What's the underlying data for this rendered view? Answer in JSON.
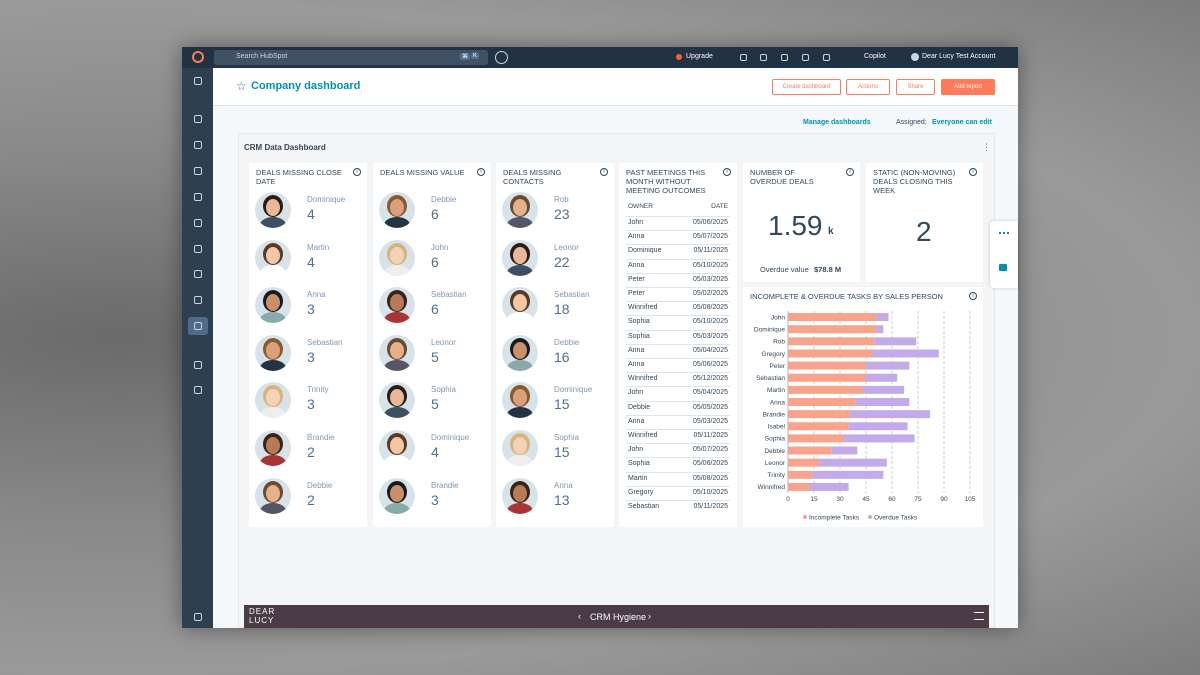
{
  "topbar": {
    "search": "Search HubSpot",
    "shortcut": [
      "⌘",
      "K"
    ],
    "upgrade": "Upgrade",
    "copilot": "Copilot",
    "account": "Dear Lucy Test Account"
  },
  "header": {
    "title": "Company dashboard",
    "buttons": [
      "Create dashboard",
      "Actions",
      "Share",
      "Add report"
    ],
    "manage": "Manage dashboards",
    "assigned_label": "Assigned:",
    "assigned_value": "Everyone can edit"
  },
  "dashboard": {
    "title": "CRM Data Dashboard",
    "people_cards": [
      {
        "title": "DEALS MISSING CLOSE DATE",
        "people": [
          {
            "name": "Dominique",
            "count": 4
          },
          {
            "name": "Martin",
            "count": 4
          },
          {
            "name": "Anna",
            "count": 3
          },
          {
            "name": "Sebastian",
            "count": 3
          },
          {
            "name": "Trinity",
            "count": 3
          },
          {
            "name": "Brandie",
            "count": 2
          },
          {
            "name": "Debbie",
            "count": 2
          }
        ]
      },
      {
        "title": "DEALS MISSING VALUE",
        "people": [
          {
            "name": "Debbie",
            "count": 6
          },
          {
            "name": "John",
            "count": 6
          },
          {
            "name": "Sebastian",
            "count": 6
          },
          {
            "name": "Leonor",
            "count": 5
          },
          {
            "name": "Sophia",
            "count": 5
          },
          {
            "name": "Dominique",
            "count": 4
          },
          {
            "name": "Brandie",
            "count": 3
          }
        ]
      },
      {
        "title": "DEALS MISSING CONTACTS",
        "people": [
          {
            "name": "Rob",
            "count": 23
          },
          {
            "name": "Leonor",
            "count": 22
          },
          {
            "name": "Sebastian",
            "count": 18
          },
          {
            "name": "Debbie",
            "count": 16
          },
          {
            "name": "Dominique",
            "count": 15
          },
          {
            "name": "Sophia",
            "count": 15
          },
          {
            "name": "Anna",
            "count": 13
          }
        ]
      }
    ],
    "meetings": {
      "title": "PAST MEETINGS THIS MONTH WITHOUT MEETING OUTCOMES",
      "columns": [
        "OWNER",
        "DATE"
      ],
      "rows": [
        [
          "John",
          "05/06/2025"
        ],
        [
          "Anna",
          "05/07/2025"
        ],
        [
          "Dominique",
          "05/11/2025"
        ],
        [
          "Anna",
          "05/10/2025"
        ],
        [
          "Peter",
          "05/03/2025"
        ],
        [
          "Peter",
          "05/02/2025"
        ],
        [
          "Winnifred",
          "05/08/2025"
        ],
        [
          "Sophia",
          "05/10/2025"
        ],
        [
          "Sophia",
          "05/03/2025"
        ],
        [
          "Anna",
          "05/04/2025"
        ],
        [
          "Anna",
          "05/06/2025"
        ],
        [
          "Winnifred",
          "05/12/2025"
        ],
        [
          "John",
          "05/04/2025"
        ],
        [
          "Debbie",
          "05/05/2025"
        ],
        [
          "Anna",
          "05/03/2025"
        ],
        [
          "Winnifred",
          "05/11/2025"
        ],
        [
          "John",
          "05/07/2025"
        ],
        [
          "Sophia",
          "05/06/2025"
        ],
        [
          "Martin",
          "05/08/2025"
        ],
        [
          "Gregory",
          "05/10/2025"
        ],
        [
          "Sebastian",
          "05/11/2025"
        ]
      ]
    },
    "overdue": {
      "title": "NUMBER OF OVERDUE DEALS",
      "value": "1.59",
      "unit": "k",
      "sub_label": "Overdue value",
      "sub_value": "$78.8 M"
    },
    "static": {
      "title": "STATIC (NON-MOVING) DEALS CLOSING THIS WEEK",
      "value": 2
    },
    "footer": {
      "logo": [
        "DEAR",
        "LUCY"
      ],
      "page": "CRM Hygiene"
    }
  },
  "chart_data": {
    "type": "bar",
    "orientation": "horizontal",
    "stacked": true,
    "title": "INCOMPLETE & OVERDUE TASKS BY SALES PERSON",
    "categories": [
      "John",
      "Dominique",
      "Rob",
      "Gregory",
      "Peter",
      "Sebastian",
      "Martin",
      "Anna",
      "Brandie",
      "Isabel",
      "Sophia",
      "Debbie",
      "Leonor",
      "Trinity",
      "Winnifred"
    ],
    "series": [
      {
        "name": "Incomplete Tasks",
        "color": "#f7a48b",
        "values": [
          51,
          51,
          50,
          49,
          45,
          45,
          43,
          39,
          36,
          35,
          32,
          25,
          18,
          14,
          13
        ]
      },
      {
        "name": "Overdue Tasks",
        "color": "#c3abea",
        "values": [
          7,
          4,
          24,
          38,
          25,
          18,
          24,
          31,
          46,
          34,
          41,
          15,
          39,
          41,
          22
        ]
      }
    ],
    "xlim": [
      0,
      105
    ],
    "xticks": [
      0,
      15,
      30,
      45,
      60,
      75,
      90,
      105
    ],
    "grid": true,
    "legend": "bottom"
  }
}
